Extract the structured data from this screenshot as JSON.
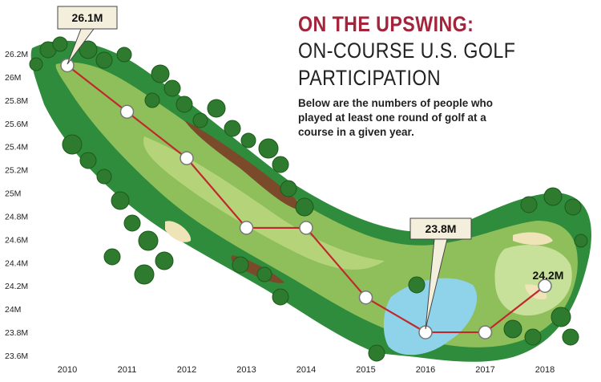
{
  "title": "ON THE UPSWING:",
  "subtitle_line1": "ON-COURSE U.S. GOLF",
  "subtitle_line2": "PARTICIPATION",
  "description": "Below are the numbers of people who played at least one round of golf at a course in a given year.",
  "colors": {
    "title": "#a3243b",
    "line": "#c0282d",
    "fairway": "#8fbf5a",
    "rough": "#2f8c3c",
    "water": "#8ed3ea",
    "sand": "#efe3b8",
    "trees": "#2e7a2e"
  },
  "chart_data": {
    "type": "line",
    "x": [
      "2010",
      "2011",
      "2012",
      "2013",
      "2014",
      "2015",
      "2016",
      "2017",
      "2018"
    ],
    "series": [
      {
        "values": [
          26.1,
          25.7,
          25.3,
          24.7,
          24.7,
          24.1,
          23.8,
          23.8,
          24.2
        ]
      }
    ],
    "ylim": [
      23.6,
      26.2
    ],
    "yticks": [
      "26.2M",
      "26M",
      "25.8M",
      "25.6M",
      "25.4M",
      "25.2M",
      "25M",
      "24.8M",
      "24.6M",
      "24.4M",
      "24.2M",
      "24M",
      "23.8M",
      "23.6M"
    ],
    "callouts": [
      {
        "label": "26.1M"
      },
      {
        "label": "23.8M"
      },
      {
        "label": "24.2M"
      }
    ]
  }
}
